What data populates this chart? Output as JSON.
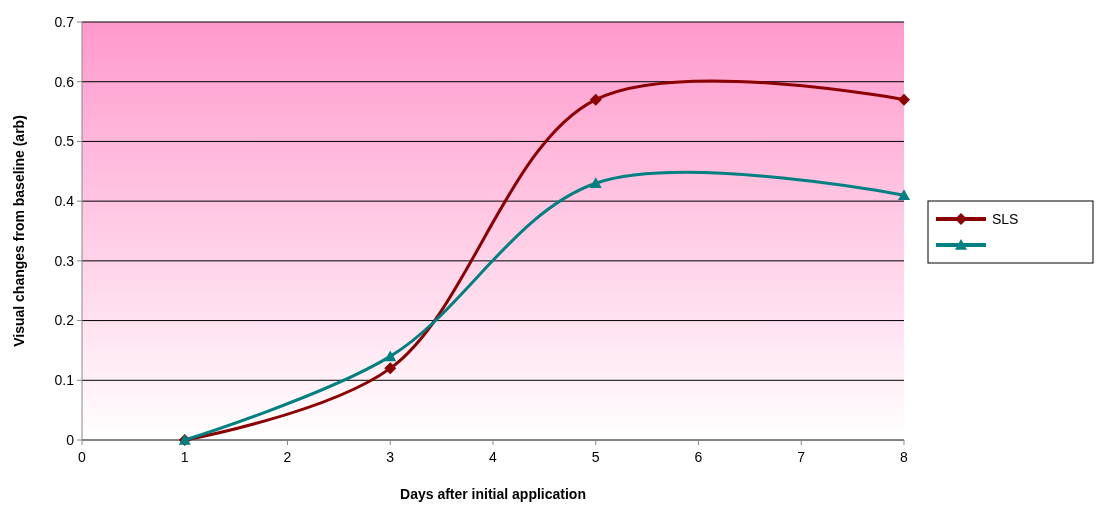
{
  "chart_data": {
    "type": "line",
    "xlabel": "Days after initial application",
    "ylabel": "Visual changes from baseline (arb)",
    "x": [
      1,
      3,
      5,
      8
    ],
    "series": [
      {
        "name": "SLS",
        "color": "#8b0000",
        "marker": "diamond",
        "values": [
          0,
          0.12,
          0.57,
          0.57
        ]
      },
      {
        "color": "#008080",
        "marker": "triangle",
        "values": [
          0,
          0.14,
          0.43,
          0.41
        ]
      }
    ],
    "xlim": [
      0,
      8
    ],
    "xticks": [
      0,
      1,
      2,
      3,
      4,
      5,
      6,
      7,
      8
    ],
    "ylim": [
      0,
      0.7
    ],
    "yticks": [
      0,
      0.1,
      0.2,
      0.3,
      0.4,
      0.5,
      0.6,
      0.7
    ],
    "grid": "y",
    "legend": "right",
    "line_style": "solid"
  }
}
